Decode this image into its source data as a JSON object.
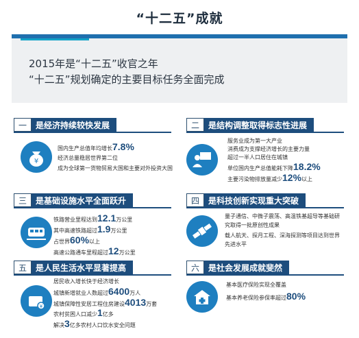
{
  "title": "“十二五”成就",
  "banner": {
    "line1": "2015年是“十二五”收官之年",
    "line2": "“十二五”规划确定的主要目标任务全面完成"
  },
  "sections": [
    {
      "num": "一",
      "title": "是经济持续较快发展",
      "icon": "money-bag-icon",
      "lines": [
        {
          "pre": "国内生产总值年均增长",
          "big": "7.8%",
          "post": ""
        },
        {
          "pre": "经济总量稳居世界第二位",
          "big": "",
          "post": ""
        },
        {
          "pre": "成为全球第一货物贸易大国和主要对外投资大国",
          "big": "",
          "post": ""
        }
      ]
    },
    {
      "num": "二",
      "title": "是结构调整取得标志性进展",
      "icon": "presenter-icon",
      "lines": [
        {
          "pre": "服务业成为第一大产业",
          "big": "",
          "post": ""
        },
        {
          "pre": "消费成为支撑经济增长的主要力量",
          "big": "",
          "post": ""
        },
        {
          "pre": "超过一半人口居住在城镇",
          "big": "",
          "post": ""
        },
        {
          "pre": "单位国内生产总值能耗下降",
          "big": "18.2%",
          "post": ""
        },
        {
          "pre": "主要污染物排放量减少",
          "big": "12%",
          "post": "以上"
        }
      ]
    },
    {
      "num": "三",
      "title": "是基础设施水平全面跃升",
      "icon": "train-icon",
      "lines": [
        {
          "pre": "铁路营业里程达到",
          "big": "12.1",
          "post": "万公里"
        },
        {
          "pre": "其中高速铁路超过",
          "big": "1.9",
          "post": "万公里"
        },
        {
          "pre": "占世界",
          "big": "60%",
          "post": "以上"
        },
        {
          "pre": "高速公路通车里程超过",
          "big": "12",
          "post": "万公里"
        }
      ]
    },
    {
      "num": "四",
      "title": "是科技创新实现重大突破",
      "icon": "satellite-icon",
      "lines": [
        {
          "pre": "量子通信、中微子震荡、高温铁基超导等基础研",
          "big": "",
          "post": ""
        },
        {
          "pre": "究取得一批原创性成果",
          "big": "",
          "post": ""
        },
        {
          "pre": "载人航天、探月工程、深海探测等项目达到世界",
          "big": "",
          "post": ""
        },
        {
          "pre": "先进水平",
          "big": "",
          "post": ""
        }
      ]
    },
    {
      "num": "五",
      "title": "是人民生活水平显著提高",
      "icon": "wallet-icon",
      "lines": [
        {
          "pre": "居民收入增长快于经济增长",
          "big": "",
          "post": ""
        },
        {
          "pre": "城镇新增就业人数超过",
          "big": "6400",
          "post": "万人"
        },
        {
          "pre": "城镇保障性安居工程住房建设",
          "big": "4013",
          "post": "万套"
        },
        {
          "pre": "农村贫困人口减少",
          "big": "1",
          "post": "亿多"
        },
        {
          "pre": "解决",
          "big": "3",
          "post": "亿多农村人口饮水安全问题"
        }
      ]
    },
    {
      "num": "六",
      "title": "是社会发展成就斐然",
      "icon": "hospital-icon",
      "lines": [
        {
          "pre": "基本医疗保险实现全覆盖",
          "big": "",
          "post": ""
        },
        {
          "pre": "基本养老保险参保率超过",
          "big": "80%",
          "post": ""
        }
      ]
    }
  ],
  "colors": {
    "primary": "#1d4d7d",
    "accent": "#1e7fc0",
    "banner_bar": "#1f6fae"
  }
}
